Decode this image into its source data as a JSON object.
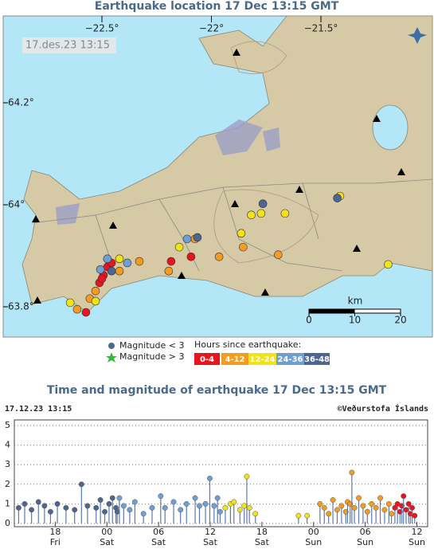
{
  "map": {
    "title": "Earthquake location   17 Dec 13:15 GMT",
    "timestamp": "17.des.23  13:15",
    "lon_ticks": [
      {
        "value": -22.5,
        "label": "−22.5°"
      },
      {
        "value": -22,
        "label": "−22°"
      },
      {
        "value": -21.5,
        "label": "−21.5°"
      }
    ],
    "lat_ticks": [
      {
        "value": 64.2,
        "label": "64.2°"
      },
      {
        "value": 64,
        "label": "64°"
      },
      {
        "value": 63.8,
        "label": "63.8°"
      }
    ],
    "scale": {
      "label": "km",
      "ticks": [
        0,
        10,
        20
      ]
    },
    "quakes": [
      {
        "lon": [
          -22.493,
          -22.475,
          -22.456,
          -22.511,
          -22.5,
          -22.184,
          -22.093,
          -22.573
        ],
        "lat": [
          63.862,
          63.878,
          63.886,
          63.847,
          63.855,
          63.889,
          63.898,
          63.789
        ]
      },
      {
        "lon": [
          -22.529,
          -22.613,
          -22.555,
          -22.329,
          -22.195,
          -21.965,
          -21.855,
          -21.695,
          -22.075,
          -22.42
        ],
        "lat": [
          63.831,
          63.795,
          63.816,
          63.889,
          63.87,
          63.898,
          63.917,
          63.902,
          63.933,
          63.87
        ]
      },
      {
        "lon": [
          -22.645,
          -22.529,
          -22.42,
          -21.818,
          -21.773,
          -21.664,
          -21.413,
          -21.193,
          -21.864,
          -22.147
        ],
        "lat": [
          63.808,
          63.811,
          63.894,
          63.98,
          63.983,
          63.983,
          64.017,
          63.883,
          63.944,
          63.917
        ]
      },
      {
        "lon": [
          -22.475,
          -22.111,
          -22.507,
          -22.384
        ],
        "lat": [
          63.894,
          63.933,
          63.873,
          63.886
        ]
      },
      {
        "lon": [
          -21.765,
          -21.425,
          -22.064,
          -22.456
        ],
        "lat": [
          64.002,
          64.013,
          63.936,
          63.87
        ]
      }
    ]
  },
  "legend": {
    "title": "Hours since earthquake:",
    "magnitude_labels": [
      "Magnitude < 3",
      "Magnitude > 3"
    ]
  },
  "chart_data": {
    "type": "stem",
    "title": "Time and magnitude of earthquake   17 Dec 13:15 GMT",
    "timestamp": "17.12.23 13:15",
    "credit": "©Veðurstofa Íslands",
    "xlim": [
      -48,
      0
    ],
    "ylim": [
      0,
      5
    ],
    "yticks": [
      0,
      1,
      2,
      3,
      4,
      5
    ],
    "xticks": [
      {
        "value": -43.25,
        "label": "18"
      },
      {
        "value": -37.25,
        "label": "00"
      },
      {
        "value": -31.25,
        "label": "06"
      },
      {
        "value": -25.25,
        "label": "12"
      },
      {
        "value": -19.25,
        "label": "18"
      },
      {
        "value": -13.25,
        "label": "00"
      },
      {
        "value": -7.25,
        "label": "06"
      },
      {
        "value": -1.25,
        "label": "12"
      }
    ],
    "xtick_days": [
      "Fri",
      "Sat",
      "Sat",
      "Sat",
      "Sat",
      "Sun",
      "Sun",
      "Sun"
    ],
    "grid": true,
    "series": [
      {
        "name": "0-4",
        "color": "#e8141e",
        "x": [
          -3.8,
          -3.5,
          -3.2,
          -3,
          -2.8,
          -2.5,
          -2.2,
          -2,
          -1.8,
          -1.5
        ],
        "values": [
          0.8,
          1,
          0.6,
          0.9,
          1.4,
          0.7,
          1,
          0.5,
          0.8,
          0.4
        ]
      },
      {
        "name": "4-12",
        "color": "#f39c1f",
        "x": [
          -12.5,
          -12,
          -11.5,
          -11,
          -10.5,
          -10,
          -9.5,
          -9.3,
          -9,
          -8.8,
          -8.5,
          -8,
          -7.5,
          -7,
          -6.5,
          -6,
          -5.5,
          -5,
          -4.5,
          -4.2
        ],
        "values": [
          1,
          0.8,
          0.5,
          1.2,
          0.7,
          0.9,
          0.6,
          1.1,
          1,
          2.6,
          0.8,
          1.3,
          0.9,
          0.6,
          1,
          0.8,
          1.3,
          0.7,
          1,
          0.5
        ]
      },
      {
        "name": "12-24",
        "color": "#f2e21a",
        "x": [
          -23.5,
          -22.9,
          -22.5,
          -21.8,
          -21.3,
          -21,
          -20.7,
          -20,
          -15,
          -14
        ],
        "values": [
          0.8,
          1,
          1.1,
          0.7,
          0.9,
          2.4,
          0.8,
          0.5,
          0.4,
          0.4
        ]
      },
      {
        "name": "24-36",
        "color": "#6f9fd2",
        "x": [
          -35.8,
          -35.3,
          -34.6,
          -34,
          -33,
          -32,
          -31,
          -30.5,
          -29.5,
          -28.7,
          -28,
          -27,
          -26.5,
          -25.8,
          -25.3,
          -24.8,
          -24.4,
          -24.1
        ],
        "values": [
          1.3,
          0.9,
          0.7,
          1.1,
          0.5,
          0.8,
          1.4,
          0.8,
          1.1,
          0.7,
          1,
          1.3,
          0.9,
          1,
          2.3,
          0.9,
          1.3,
          0.6
        ]
      },
      {
        "name": "36-48",
        "color": "#4d6690",
        "x": [
          -47.5,
          -46.8,
          -46,
          -45.2,
          -44.5,
          -43.8,
          -43,
          -42,
          -41,
          -40.2,
          -39.5,
          -38.5,
          -38,
          -37.5,
          -37,
          -36.6,
          -36.2,
          -36.05
        ],
        "values": [
          0.8,
          1,
          0.7,
          1.1,
          0.9,
          0.6,
          1,
          0.8,
          0.7,
          2,
          0.9,
          0.8,
          1.2,
          0.6,
          1,
          1.3,
          0.8,
          0.6
        ]
      }
    ]
  }
}
